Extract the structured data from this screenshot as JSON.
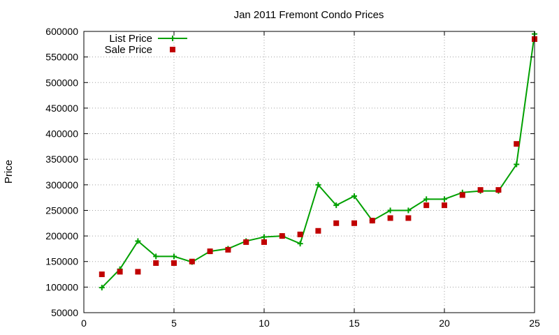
{
  "chart_data": {
    "type": "line",
    "title": "Jan 2011 Fremont Condo Prices",
    "xlabel": "",
    "ylabel": "Price",
    "xlim": [
      0,
      25
    ],
    "ylim": [
      50000,
      600000
    ],
    "xticks": [
      0,
      5,
      10,
      15,
      20,
      25
    ],
    "yticks": [
      50000,
      100000,
      150000,
      200000,
      250000,
      300000,
      350000,
      400000,
      450000,
      500000,
      550000,
      600000
    ],
    "grid": true,
    "legend": "top-left",
    "series": [
      {
        "name": "List Price",
        "style": "line+cross",
        "color": "#00a000",
        "x": [
          1,
          2,
          3,
          4,
          5,
          6,
          7,
          8,
          9,
          10,
          11,
          12,
          13,
          14,
          15,
          16,
          17,
          18,
          19,
          20,
          21,
          22,
          23,
          24,
          25
        ],
        "y": [
          99000,
          135000,
          190000,
          160000,
          160000,
          149000,
          170000,
          175000,
          190000,
          198000,
          200000,
          185000,
          300000,
          260000,
          278000,
          230000,
          250000,
          250000,
          272000,
          272000,
          285000,
          288000,
          288000,
          340000,
          595000
        ]
      },
      {
        "name": "Sale Price",
        "style": "square",
        "color": "#c00000",
        "x": [
          1,
          2,
          3,
          4,
          5,
          6,
          7,
          8,
          9,
          10,
          11,
          12,
          13,
          14,
          15,
          16,
          17,
          18,
          19,
          20,
          21,
          22,
          23,
          24,
          25
        ],
        "y": [
          125000,
          130000,
          130000,
          147000,
          147000,
          150000,
          170000,
          173000,
          188000,
          188000,
          200000,
          203000,
          210000,
          225000,
          225000,
          230000,
          235000,
          235000,
          260000,
          260000,
          280000,
          290000,
          290000,
          380000,
          585000
        ]
      }
    ]
  }
}
